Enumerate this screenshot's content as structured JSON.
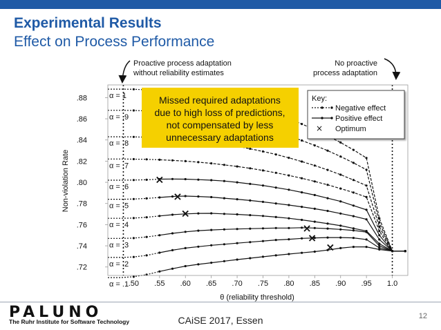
{
  "slide": {
    "title": "Experimental Results",
    "subtitle": "Effect on Process Performance",
    "footer": "CAiSE 2017, Essen",
    "page_number": "12",
    "logo_text": "PALUNO",
    "logo_subtitle": "The Ruhr Institute for Software Technology",
    "brand_color": "#1f5aa6"
  },
  "chart_data": {
    "type": "line",
    "xlabel": "θ (reliability threshold)",
    "ylabel": "Non-violation Rate",
    "x_ticks": [
      ".50",
      ".55",
      ".60",
      ".65",
      ".70",
      ".75",
      ".80",
      ".85",
      ".90",
      ".95",
      "1.0"
    ],
    "y_ticks": [
      ".72",
      ".74",
      ".76",
      ".78",
      ".80",
      ".82",
      ".84",
      ".86",
      ".88"
    ],
    "x_range": [
      0.45,
      1.03
    ],
    "y_range": [
      0.712,
      0.892
    ],
    "x": [
      0.45,
      0.475,
      0.5,
      0.525,
      0.55,
      0.575,
      0.6,
      0.625,
      0.65,
      0.675,
      0.7,
      0.725,
      0.75,
      0.775,
      0.8,
      0.825,
      0.85,
      0.875,
      0.9,
      0.925,
      0.95,
      0.975,
      1.0,
      1.025
    ],
    "crossover_index": 4,
    "series": [
      {
        "name": "α = 1",
        "values": [
          0.888,
          0.888,
          0.8879,
          0.8874,
          0.8867,
          0.8857,
          0.8843,
          0.8826,
          0.8805,
          0.8781,
          0.8753,
          0.8721,
          0.8685,
          0.8645,
          0.86,
          0.8551,
          0.8498,
          0.8439,
          0.8376,
          0.8306,
          0.823,
          0.766,
          0.735,
          0.735
        ]
      },
      {
        "name": "α = .9",
        "values": [
          0.868,
          0.868,
          0.8679,
          0.8675,
          0.8669,
          0.866,
          0.8648,
          0.8633,
          0.8615,
          0.8594,
          0.857,
          0.8542,
          0.8511,
          0.8476,
          0.8438,
          0.8395,
          0.8349,
          0.8299,
          0.8244,
          0.8184,
          0.8119,
          0.762,
          0.735,
          0.735
        ]
      },
      {
        "name": "α = .8",
        "values": [
          0.843,
          0.843,
          0.8429,
          0.8426,
          0.8421,
          0.8414,
          0.8404,
          0.8392,
          0.8377,
          0.836,
          0.834,
          0.8317,
          0.8291,
          0.8263,
          0.8231,
          0.8196,
          0.8158,
          0.8117,
          0.8072,
          0.8022,
          0.7969,
          0.758,
          0.735,
          0.735
        ]
      },
      {
        "name": "α = .7",
        "values": [
          0.822,
          0.822,
          0.8219,
          0.8217,
          0.8213,
          0.8207,
          0.82,
          0.819,
          0.8179,
          0.8165,
          0.815,
          0.8132,
          0.8112,
          0.809,
          0.8065,
          0.8038,
          0.8008,
          0.7976,
          0.7941,
          0.7903,
          0.7861,
          0.754,
          0.735,
          0.735
        ]
      },
      {
        "name": "α = .6",
        "values": [
          0.802,
          0.802,
          0.8021,
          0.8024,
          0.803,
          0.8031,
          0.803,
          0.8025,
          0.802,
          0.8012,
          0.8,
          0.7985,
          0.797,
          0.795,
          0.793,
          0.7905,
          0.788,
          0.785,
          0.782,
          0.778,
          0.774,
          0.75,
          0.735,
          0.735
        ]
      },
      {
        "name": "α = .5",
        "values": [
          0.784,
          0.784,
          0.7842,
          0.7848,
          0.7857,
          0.7866,
          0.787,
          0.7866,
          0.786,
          0.785,
          0.784,
          0.7828,
          0.7815,
          0.78,
          0.7785,
          0.7768,
          0.775,
          0.773,
          0.7705,
          0.768,
          0.765,
          0.746,
          0.735,
          0.735
        ]
      },
      {
        "name": "α = .4",
        "values": [
          0.766,
          0.766,
          0.7662,
          0.767,
          0.7682,
          0.7694,
          0.7702,
          0.7706,
          0.7707,
          0.7702,
          0.7697,
          0.769,
          0.7682,
          0.7672,
          0.766,
          0.7645,
          0.7628,
          0.761,
          0.759,
          0.7565,
          0.754,
          0.742,
          0.735,
          0.735
        ]
      },
      {
        "name": "α = .3",
        "values": [
          0.747,
          0.747,
          0.7473,
          0.7484,
          0.75,
          0.7518,
          0.7532,
          0.7543,
          0.755,
          0.7555,
          0.7559,
          0.7562,
          0.7565,
          0.7568,
          0.7568,
          0.7571,
          0.7568,
          0.7563,
          0.7555,
          0.7545,
          0.753,
          0.74,
          0.735,
          0.735
        ]
      },
      {
        "name": "α = .2",
        "values": [
          0.729,
          0.729,
          0.7295,
          0.731,
          0.7335,
          0.7359,
          0.7378,
          0.7392,
          0.7405,
          0.7415,
          0.7425,
          0.7435,
          0.7445,
          0.7455,
          0.7462,
          0.747,
          0.7475,
          0.7478,
          0.7478,
          0.7475,
          0.746,
          0.738,
          0.735,
          0.735
        ]
      },
      {
        "name": "α = .1",
        "values": [
          0.71,
          0.71,
          0.7108,
          0.7128,
          0.7158,
          0.7184,
          0.7208,
          0.7225,
          0.724,
          0.7255,
          0.727,
          0.7283,
          0.7297,
          0.731,
          0.7322,
          0.7334,
          0.7345,
          0.736,
          0.7378,
          0.739,
          0.739,
          0.7365,
          0.735,
          0.735
        ]
      }
    ],
    "optimum_points": [
      [
        0.55,
        0.803
      ],
      [
        0.585,
        0.787
      ],
      [
        0.6,
        0.771
      ],
      [
        0.835,
        0.757
      ],
      [
        0.845,
        0.748
      ],
      [
        0.88,
        0.739
      ]
    ],
    "vlines": [
      0.48,
      1.0
    ],
    "annotations": {
      "left_line_label_1": "Proactive process adaptation",
      "left_line_label_2": "without reliability estimates",
      "right_line_label_1": "No proactive",
      "right_line_label_2": "process adaptation",
      "callout_1": "Missed required adaptations",
      "callout_2": "due to high loss of predictions,",
      "callout_3": "not compensated by less",
      "callout_4": "unnecessary adaptations",
      "callout_color": "#f5d000"
    },
    "key": {
      "title": "Key:",
      "negative": "Negative effect",
      "positive": "Positive effect",
      "optimum": "Optimum"
    }
  }
}
